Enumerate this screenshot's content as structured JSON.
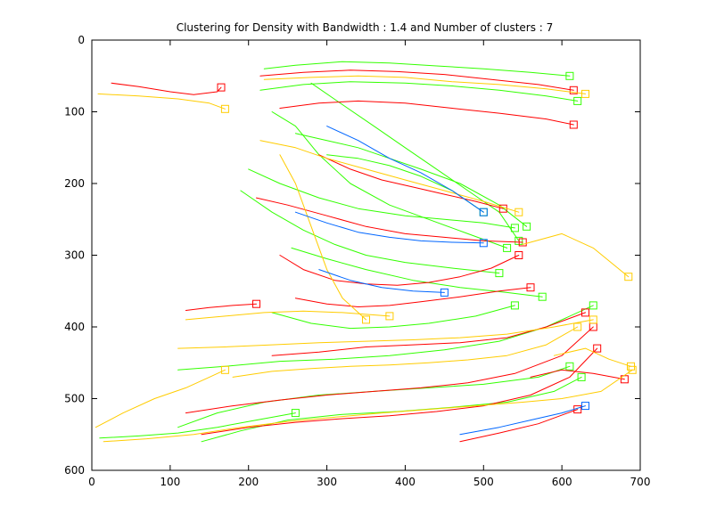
{
  "chart_data": {
    "type": "line",
    "title": "Clustering for Density with Bandwidth : 1.4 and Number of clusters : 7",
    "xlabel": "",
    "ylabel": "",
    "xlim": [
      0,
      700
    ],
    "ylim": [
      0,
      600
    ],
    "y_reversed": true,
    "x_ticks": [
      "0",
      "100",
      "200",
      "300",
      "400",
      "500",
      "600",
      "700"
    ],
    "y_ticks": [
      "0",
      "100",
      "200",
      "300",
      "400",
      "500",
      "600"
    ],
    "grid": false,
    "legend": "none",
    "marker": "square at trajectory end",
    "colors": {
      "red": "#ff0000",
      "yellow": "#ffcc00",
      "green": "#33ff00",
      "blue": "#0066ff"
    },
    "series": [
      {
        "cluster": "green",
        "x": [
          220,
          260,
          320,
          380,
          440,
          500,
          560,
          610
        ],
        "y": [
          40,
          35,
          30,
          32,
          36,
          40,
          45,
          50
        ]
      },
      {
        "cluster": "green",
        "x": [
          215,
          270,
          330,
          400,
          460,
          520,
          580,
          620
        ],
        "y": [
          70,
          62,
          58,
          60,
          64,
          70,
          78,
          85
        ]
      },
      {
        "cluster": "green",
        "x": [
          260,
          300,
          340,
          380,
          420,
          470,
          520,
          555
        ],
        "y": [
          130,
          140,
          150,
          165,
          180,
          200,
          230,
          260
        ]
      },
      {
        "cluster": "green",
        "x": [
          200,
          240,
          290,
          340,
          400,
          450,
          500,
          540
        ],
        "y": [
          180,
          200,
          220,
          235,
          245,
          250,
          255,
          262
        ]
      },
      {
        "cluster": "green",
        "x": [
          190,
          230,
          270,
          310,
          350,
          400,
          460,
          520
        ],
        "y": [
          210,
          240,
          265,
          285,
          300,
          310,
          318,
          325
        ]
      },
      {
        "cluster": "green",
        "x": [
          230,
          260,
          290,
          330,
          380,
          430,
          480,
          530
        ],
        "y": [
          100,
          120,
          160,
          200,
          230,
          250,
          270,
          290
        ]
      },
      {
        "cluster": "green",
        "x": [
          280,
          320,
          360,
          400,
          440,
          480,
          520,
          545
        ],
        "y": [
          60,
          90,
          120,
          150,
          180,
          210,
          240,
          280
        ]
      },
      {
        "cluster": "green",
        "x": [
          110,
          160,
          220,
          290,
          360,
          430,
          500,
          570,
          610
        ],
        "y": [
          540,
          520,
          505,
          495,
          490,
          485,
          480,
          470,
          455
        ]
      },
      {
        "cluster": "green",
        "x": [
          140,
          190,
          250,
          320,
          390,
          460,
          530,
          590,
          625
        ],
        "y": [
          560,
          545,
          530,
          522,
          518,
          512,
          505,
          490,
          470
        ]
      },
      {
        "cluster": "green",
        "x": [
          110,
          170,
          240,
          310,
          380,
          450,
          520,
          580,
          640
        ],
        "y": [
          460,
          455,
          448,
          445,
          440,
          432,
          420,
          400,
          370
        ]
      },
      {
        "cluster": "green",
        "x": [
          230,
          280,
          330,
          380,
          430,
          490,
          540
        ],
        "y": [
          380,
          395,
          402,
          400,
          395,
          385,
          370
        ]
      },
      {
        "cluster": "green",
        "x": [
          10,
          60,
          110,
          160,
          210,
          260
        ],
        "y": [
          555,
          552,
          548,
          540,
          530,
          520
        ]
      },
      {
        "cluster": "green",
        "x": [
          300,
          340,
          380,
          420,
          460,
          500
        ],
        "y": [
          160,
          165,
          175,
          190,
          210,
          240
        ]
      },
      {
        "cluster": "green",
        "x": [
          255,
          300,
          350,
          410,
          470,
          530,
          575
        ],
        "y": [
          290,
          305,
          320,
          335,
          345,
          352,
          358
        ]
      },
      {
        "cluster": "red",
        "x": [
          215,
          270,
          330,
          390,
          450,
          510,
          570,
          615
        ],
        "y": [
          50,
          45,
          42,
          44,
          48,
          55,
          62,
          70
        ]
      },
      {
        "cluster": "red",
        "x": [
          240,
          290,
          340,
          400,
          460,
          520,
          580,
          615
        ],
        "y": [
          95,
          88,
          85,
          88,
          95,
          102,
          110,
          118
        ]
      },
      {
        "cluster": "red",
        "x": [
          210,
          250,
          300,
          350,
          400,
          450,
          500,
          550
        ],
        "y": [
          220,
          230,
          245,
          260,
          270,
          275,
          280,
          282
        ]
      },
      {
        "cluster": "red",
        "x": [
          240,
          270,
          310,
          350,
          390,
          430,
          470,
          510,
          545
        ],
        "y": [
          300,
          320,
          335,
          340,
          342,
          338,
          330,
          318,
          300
        ]
      },
      {
        "cluster": "red",
        "x": [
          290,
          330,
          370,
          410,
          450,
          490,
          525
        ],
        "y": [
          160,
          180,
          195,
          205,
          215,
          225,
          235
        ]
      },
      {
        "cluster": "red",
        "x": [
          120,
          180,
          240,
          300,
          360,
          420,
          480,
          540,
          600,
          640
        ],
        "y": [
          520,
          510,
          502,
          495,
          490,
          485,
          478,
          465,
          440,
          400
        ]
      },
      {
        "cluster": "red",
        "x": [
          140,
          200,
          260,
          320,
          380,
          440,
          500,
          560,
          610,
          645
        ],
        "y": [
          550,
          540,
          533,
          528,
          524,
          518,
          510,
          495,
          470,
          430
        ]
      },
      {
        "cluster": "red",
        "x": [
          230,
          290,
          350,
          410,
          470,
          530,
          580,
          630
        ],
        "y": [
          440,
          435,
          428,
          425,
          422,
          415,
          400,
          380
        ]
      },
      {
        "cluster": "red",
        "x": [
          120,
          150,
          180,
          210
        ],
        "y": [
          377,
          373,
          370,
          368
        ]
      },
      {
        "cluster": "red",
        "x": [
          25,
          60,
          100,
          130,
          160,
          165
        ],
        "y": [
          60,
          65,
          72,
          76,
          72,
          66
        ]
      },
      {
        "cluster": "red",
        "x": [
          560,
          600,
          640,
          680
        ],
        "y": [
          470,
          460,
          465,
          473
        ]
      },
      {
        "cluster": "red",
        "x": [
          260,
          300,
          340,
          380,
          420,
          470,
          520,
          560
        ],
        "y": [
          360,
          368,
          372,
          370,
          365,
          358,
          350,
          345
        ]
      },
      {
        "cluster": "red",
        "x": [
          470,
          520,
          570,
          620
        ],
        "y": [
          560,
          548,
          535,
          515
        ]
      },
      {
        "cluster": "yellow",
        "x": [
          220,
          280,
          340,
          400,
          460,
          520,
          580,
          630
        ],
        "y": [
          55,
          52,
          50,
          52,
          58,
          62,
          68,
          75
        ]
      },
      {
        "cluster": "yellow",
        "x": [
          215,
          260,
          300,
          350,
          400,
          450,
          500,
          545
        ],
        "y": [
          140,
          150,
          165,
          180,
          195,
          210,
          225,
          240
        ]
      },
      {
        "cluster": "yellow",
        "x": [
          240,
          260,
          280,
          300,
          320,
          350
        ],
        "y": [
          160,
          200,
          260,
          320,
          360,
          390
        ]
      },
      {
        "cluster": "yellow",
        "x": [
          5,
          40,
          80,
          120,
          150,
          170
        ],
        "y": [
          540,
          520,
          500,
          485,
          470,
          460
        ]
      },
      {
        "cluster": "yellow",
        "x": [
          15,
          70,
          130,
          190,
          250,
          310,
          370,
          430,
          490,
          550,
          600,
          650,
          690
        ],
        "y": [
          560,
          556,
          550,
          540,
          532,
          526,
          520,
          515,
          510,
          505,
          500,
          490,
          460
        ]
      },
      {
        "cluster": "yellow",
        "x": [
          110,
          170,
          230,
          290,
          350,
          410,
          470,
          530,
          590,
          640
        ],
        "y": [
          430,
          428,
          425,
          422,
          420,
          418,
          415,
          410,
          400,
          390
        ]
      },
      {
        "cluster": "yellow",
        "x": [
          120,
          170,
          220,
          270,
          320,
          380
        ],
        "y": [
          390,
          385,
          380,
          378,
          380,
          385
        ]
      },
      {
        "cluster": "yellow",
        "x": [
          8,
          60,
          110,
          150,
          170
        ],
        "y": [
          75,
          78,
          82,
          88,
          96
        ]
      },
      {
        "cluster": "yellow",
        "x": [
          550,
          600,
          640,
          685
        ],
        "y": [
          285,
          270,
          290,
          330
        ]
      },
      {
        "cluster": "yellow",
        "x": [
          590,
          630,
          660,
          688
        ],
        "y": [
          440,
          430,
          445,
          455
        ]
      },
      {
        "cluster": "yellow",
        "x": [
          180,
          230,
          280,
          330,
          380,
          430,
          480,
          530,
          580,
          620
        ],
        "y": [
          470,
          462,
          458,
          455,
          453,
          450,
          446,
          440,
          425,
          400
        ]
      },
      {
        "cluster": "blue",
        "x": [
          300,
          340,
          380,
          420,
          460,
          500
        ],
        "y": [
          120,
          140,
          165,
          185,
          210,
          240
        ]
      },
      {
        "cluster": "blue",
        "x": [
          260,
          300,
          340,
          380,
          420,
          460,
          500
        ],
        "y": [
          240,
          255,
          268,
          275,
          280,
          282,
          283
        ]
      },
      {
        "cluster": "blue",
        "x": [
          470,
          520,
          560,
          600,
          630
        ],
        "y": [
          550,
          540,
          530,
          520,
          510
        ]
      },
      {
        "cluster": "blue",
        "x": [
          290,
          330,
          370,
          410,
          450
        ],
        "y": [
          320,
          335,
          345,
          350,
          352
        ]
      }
    ]
  }
}
